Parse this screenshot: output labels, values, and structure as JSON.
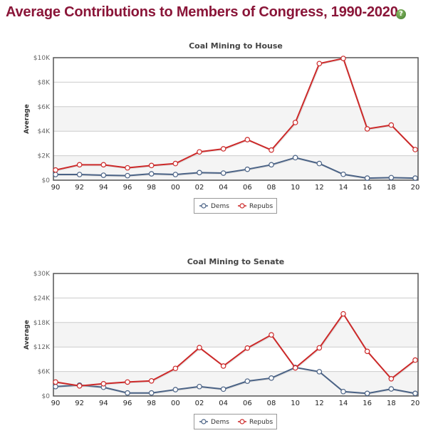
{
  "page": {
    "title": "Average Contributions to Members of Congress, 1990-2020",
    "help_icon": "?"
  },
  "colors": {
    "title": "#8a1538",
    "dems": "#4a6285",
    "repubs": "#cc2929",
    "band": "#f4f4f4",
    "grid": "#cccccc",
    "axis": "#555555"
  },
  "chart_data": [
    {
      "type": "line",
      "title": "Coal Mining to House",
      "xlabel": "",
      "ylabel": "Average",
      "categories": [
        "90",
        "92",
        "94",
        "96",
        "98",
        "00",
        "02",
        "04",
        "06",
        "08",
        "10",
        "12",
        "14",
        "16",
        "18",
        "20"
      ],
      "yticks": [
        "$0",
        "$2K",
        "$4K",
        "$6K",
        "$8K",
        "$10K"
      ],
      "ylim": [
        0,
        10000
      ],
      "grid": true,
      "legend": "bottom-center",
      "series": [
        {
          "name": "Dems",
          "color": "#4a6285",
          "values": [
            465,
            465,
            405,
            370,
            520,
            465,
            620,
            580,
            890,
            1260,
            1840,
            1360,
            480,
            170,
            210,
            170
          ]
        },
        {
          "name": "Repubs",
          "color": "#cc2929",
          "values": [
            830,
            1260,
            1260,
            1010,
            1200,
            1360,
            2310,
            2560,
            3310,
            2460,
            4710,
            9520,
            9940,
            4190,
            4500,
            2500
          ]
        }
      ]
    },
    {
      "type": "line",
      "title": "Coal Mining to Senate",
      "xlabel": "",
      "ylabel": "Average",
      "categories": [
        "90",
        "92",
        "94",
        "96",
        "98",
        "00",
        "02",
        "04",
        "06",
        "08",
        "10",
        "12",
        "14",
        "16",
        "18",
        "20"
      ],
      "yticks": [
        "$0",
        "$6K",
        "$12K",
        "$18K",
        "$24K",
        "$30K"
      ],
      "ylim": [
        0,
        30000
      ],
      "grid": true,
      "legend": "bottom-center",
      "series": [
        {
          "name": "Dems",
          "color": "#4a6285",
          "values": [
            2310,
            2660,
            2140,
            750,
            750,
            1560,
            2310,
            1680,
            3640,
            4390,
            6990,
            5950,
            1090,
            640,
            1730,
            640
          ]
        },
        {
          "name": "Repubs",
          "color": "#cc2929",
          "values": [
            3420,
            2480,
            3000,
            3420,
            3700,
            6760,
            11850,
            7340,
            11740,
            14970,
            6880,
            11790,
            20120,
            10930,
            4220,
            8790
          ]
        }
      ]
    }
  ]
}
